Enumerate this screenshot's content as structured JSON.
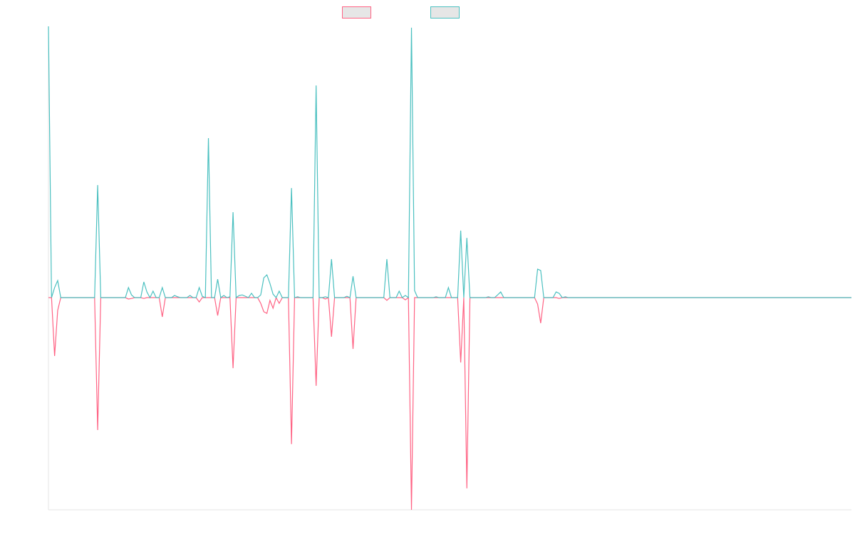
{
  "chart_data": {
    "type": "line",
    "ylim": [
      -78.2,
      100
    ],
    "series": [
      {
        "color": "#ff6384",
        "values": [
          0,
          0,
          -21.5,
          -4.7,
          0,
          0,
          0,
          0,
          0,
          0,
          0,
          0,
          0,
          0,
          0,
          0,
          -48.8,
          0,
          0,
          0,
          0,
          0,
          0,
          0,
          0,
          0,
          -0.5,
          -0.3,
          0,
          0,
          0,
          -0.3,
          0,
          0,
          0,
          0,
          0,
          -7.1,
          0,
          0,
          0,
          0,
          0,
          0,
          0,
          0,
          0,
          0,
          0,
          -1.6,
          0,
          0,
          0,
          0,
          0,
          -6.6,
          0,
          0,
          0,
          0,
          -26,
          0,
          0,
          0,
          0,
          0,
          0,
          0,
          0,
          -2.1,
          -5.2,
          -5.8,
          -1,
          -3.9,
          0,
          -2.1,
          0,
          0,
          0,
          -54,
          0,
          0,
          0,
          0,
          0,
          0,
          0,
          -32.5,
          0,
          0,
          -0.5,
          0,
          -14.4,
          0,
          0,
          0,
          0,
          0,
          0,
          -18.9,
          0,
          0,
          0,
          0,
          0,
          0,
          0,
          0,
          0,
          0,
          -1,
          0,
          0,
          0,
          0,
          0,
          -0.8,
          0,
          -78.2,
          0,
          0,
          0,
          0,
          0,
          0,
          0,
          0,
          0,
          0,
          0,
          0,
          0,
          0,
          0,
          -23.9,
          0,
          -70.3,
          0,
          0,
          0,
          0,
          0,
          0,
          0,
          0,
          0,
          0,
          0,
          0,
          0,
          0,
          0,
          0,
          0,
          0,
          0,
          0,
          0,
          0,
          -2.4,
          -9.4,
          0,
          0,
          0,
          0,
          0,
          -0.3,
          0,
          0,
          0,
          0,
          0,
          0,
          0,
          0,
          0,
          0,
          0,
          0,
          0,
          0,
          0,
          0,
          0,
          0,
          0,
          0,
          0,
          0,
          0,
          0,
          0,
          0,
          0,
          0,
          0,
          0,
          0,
          0,
          0,
          0,
          0,
          0,
          0,
          0,
          0,
          0,
          0,
          0,
          0,
          0,
          0,
          0,
          0,
          0,
          0,
          0,
          0,
          0,
          0,
          0,
          0,
          0,
          0,
          0,
          0,
          0,
          0,
          0,
          0,
          0,
          0,
          0,
          0,
          0,
          0,
          0,
          0,
          0,
          0,
          0,
          0,
          0,
          0,
          0,
          0,
          0,
          0,
          0,
          0,
          0,
          0,
          0,
          0,
          0,
          0,
          0,
          0,
          0,
          0,
          0,
          0
        ]
      },
      {
        "color": "#4bc0c0",
        "values": [
          100,
          0,
          3.7,
          6.3,
          0,
          0,
          0,
          0,
          0,
          0,
          0,
          0,
          0,
          0,
          0,
          0,
          41.5,
          0,
          0,
          0,
          0,
          0,
          0,
          0,
          0,
          0,
          3.7,
          1,
          0,
          0,
          0,
          5.8,
          2.1,
          0,
          2.4,
          0,
          0,
          3.7,
          0,
          0,
          0,
          0.8,
          0.3,
          0,
          0,
          0,
          0.8,
          0,
          0,
          3.7,
          0.5,
          0,
          58.8,
          0,
          0,
          6.8,
          0,
          0.8,
          0,
          0.3,
          31.5,
          0,
          0.8,
          1,
          0.5,
          0,
          1.6,
          0,
          0,
          1,
          7.3,
          8.4,
          5.2,
          1.3,
          0,
          2.4,
          0,
          0,
          0,
          40.4,
          0,
          0.3,
          0,
          0,
          0,
          0,
          0,
          78.2,
          0,
          0,
          0.3,
          0,
          14.2,
          0,
          0,
          0,
          0,
          0.5,
          0,
          7.9,
          0,
          0,
          0,
          0,
          0,
          0,
          0,
          0,
          0,
          0,
          14.2,
          0,
          0,
          0,
          2.4,
          0,
          0.8,
          0,
          99.5,
          2.6,
          0,
          0,
          0,
          0,
          0,
          0,
          0.3,
          0,
          0,
          0,
          3.7,
          0,
          0,
          0,
          24.7,
          0,
          22,
          0,
          0,
          0,
          0,
          0,
          0,
          0.3,
          0,
          0,
          1,
          2.1,
          0,
          0,
          0,
          0,
          0,
          0,
          0,
          0,
          0,
          0,
          0,
          10.5,
          10,
          0,
          0,
          0,
          0,
          2.1,
          1.6,
          0,
          0.3,
          0,
          0,
          0,
          0,
          0,
          0,
          0,
          0,
          0,
          0,
          0,
          0,
          0,
          0,
          0,
          0,
          0,
          0,
          0,
          0,
          0,
          0,
          0,
          0,
          0,
          0,
          0,
          0,
          0,
          0,
          0,
          0,
          0,
          0,
          0,
          0,
          0,
          0,
          0,
          0,
          0,
          0,
          0,
          0,
          0,
          0,
          0,
          0,
          0,
          0,
          0,
          0,
          0,
          0,
          0,
          0,
          0,
          0,
          0,
          0,
          0,
          0,
          0,
          0,
          0,
          0,
          0,
          0,
          0,
          0,
          0,
          0,
          0,
          0,
          0,
          0,
          0,
          0,
          0,
          0,
          0,
          0,
          0,
          0,
          0,
          0,
          0,
          0,
          0,
          0,
          0,
          0,
          0
        ]
      }
    ]
  }
}
